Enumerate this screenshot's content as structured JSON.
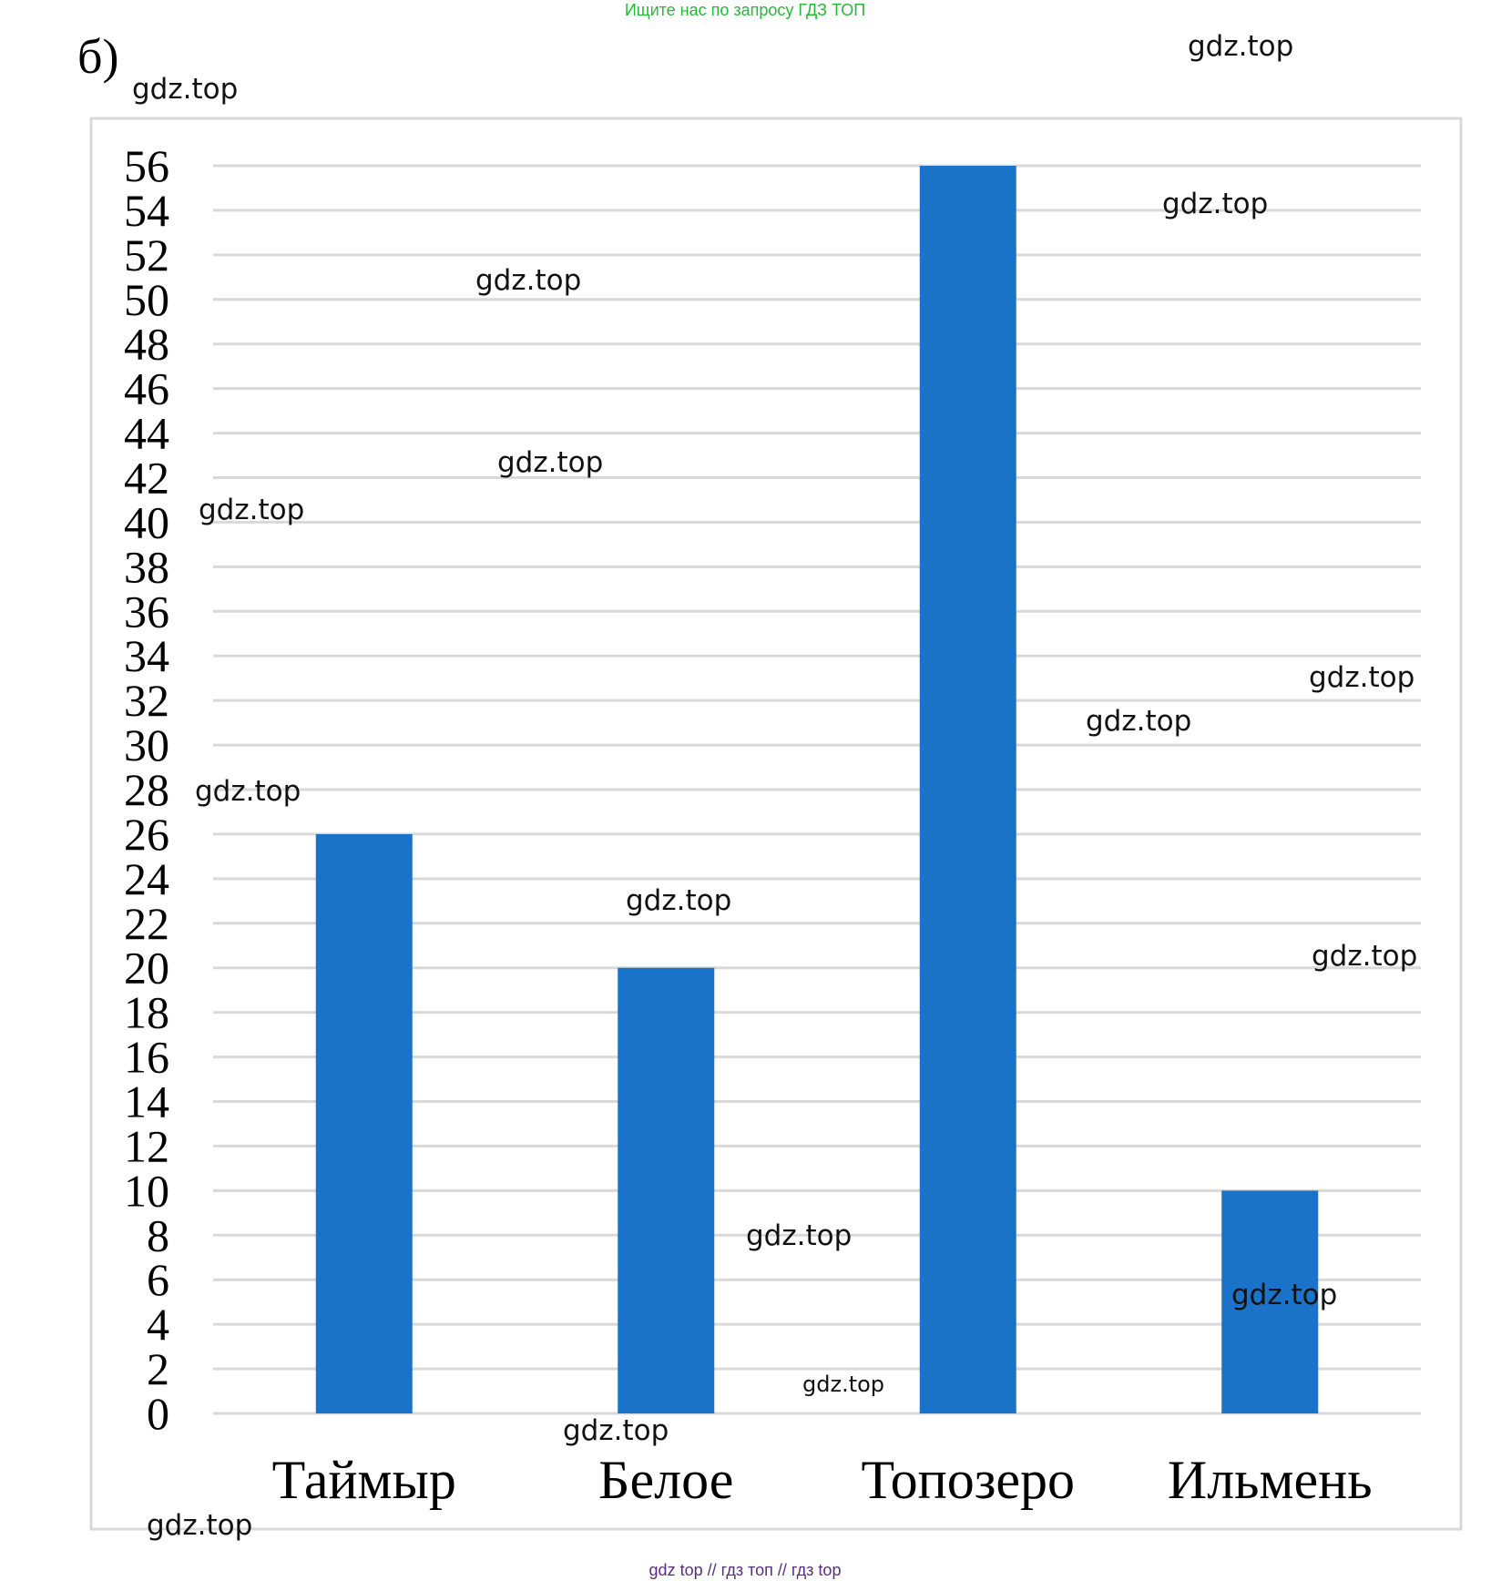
{
  "header_watermark": "Ищите нас по запросу ГДЗ ТОП",
  "panel_label": "б)",
  "footer_watermark": "gdz top  //  гдз топ  //  гдз top",
  "watermark_text": "gdz.top",
  "chart_data": {
    "type": "bar",
    "categories": [
      "Таймыр",
      "Белое",
      "Топозеро",
      "Ильмень"
    ],
    "values": [
      26,
      20,
      56,
      10
    ],
    "ylim": [
      0,
      56
    ],
    "ytick_step": 2,
    "grid": true,
    "legend": "none",
    "bar_color": "#1a73c8"
  }
}
